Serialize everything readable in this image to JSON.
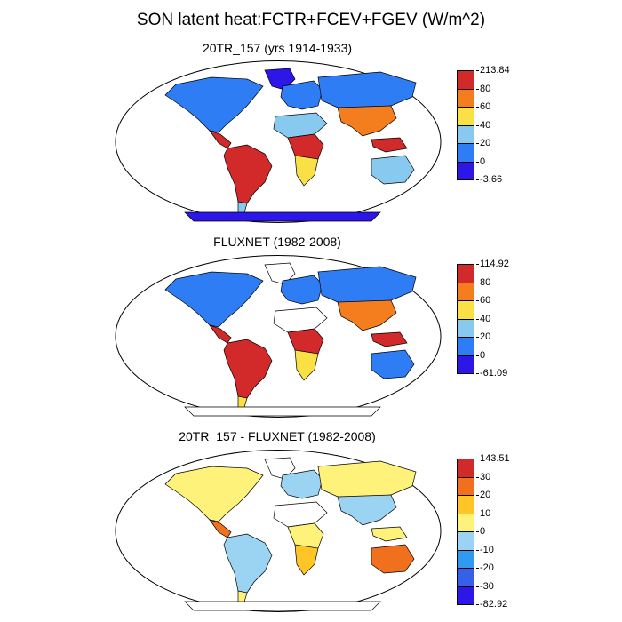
{
  "title": "SON latent heat:FCTR+FCEV+FGEV (W/m^2)",
  "panels": [
    {
      "title": "20TR_157 (yrs 1914-1933)",
      "legend": {
        "colors": [
          "#2c16e8",
          "#2f7df4",
          "#88caef",
          "#f8e045",
          "#f47d1e",
          "#d22a2a"
        ],
        "ticks": [
          "213.84",
          "80",
          "60",
          "40",
          "20",
          "0",
          "-3.66"
        ]
      },
      "regions": {
        "north_america": "#2f7df4",
        "greenland": "#2c16e8",
        "central_america": "#d22a2a",
        "south_america": "#d22a2a",
        "patagonia": "#88caef",
        "europe": "#2f7df4",
        "africa_north": "#88caef",
        "africa_central": "#d22a2a",
        "africa_south": "#f8e045",
        "asia_north": "#2f7df4",
        "asia_south": "#f47d1e",
        "maritime": "#d22a2a",
        "australia": "#88caef",
        "antarctica": "#2c16e8"
      }
    },
    {
      "title": "FLUXNET (1982-2008)",
      "legend": {
        "colors": [
          "#2c16e8",
          "#2f7df4",
          "#88caef",
          "#f8e045",
          "#f47d1e",
          "#d22a2a"
        ],
        "ticks": [
          "114.92",
          "80",
          "60",
          "40",
          "20",
          "0",
          "-61.09"
        ]
      },
      "regions": {
        "north_america": "#2f7df4",
        "greenland": "#ffffff",
        "central_america": "#d22a2a",
        "south_america": "#d22a2a",
        "patagonia": "#f8e045",
        "europe": "#2f7df4",
        "africa_north": "#ffffff",
        "africa_central": "#d22a2a",
        "africa_south": "#f8e045",
        "asia_north": "#2f7df4",
        "asia_south": "#f47d1e",
        "maritime": "#d22a2a",
        "australia": "#2f7df4",
        "antarctica": "#ffffff"
      }
    },
    {
      "title": "20TR_157 - FLUXNET (1982-2008)",
      "legend": {
        "colors": [
          "#2c16e8",
          "#3560e8",
          "#2f9af0",
          "#9bd3f2",
          "#fff27a",
          "#ffc425",
          "#f0701e",
          "#d22a2a"
        ],
        "ticks": [
          "143.51",
          "30",
          "20",
          "10",
          "0",
          "-10",
          "-20",
          "-30",
          "-82.92"
        ]
      },
      "regions": {
        "north_america": "#fff27a",
        "greenland": "#ffffff",
        "central_america": "#f0701e",
        "south_america": "#9bd3f2",
        "patagonia": "#fff27a",
        "europe": "#9bd3f2",
        "africa_north": "#ffffff",
        "africa_central": "#fff27a",
        "africa_south": "#ffc425",
        "asia_north": "#fff27a",
        "asia_south": "#9bd3f2",
        "maritime": "#fff27a",
        "australia": "#f0701e",
        "antarctica": "#ffffff"
      }
    }
  ]
}
